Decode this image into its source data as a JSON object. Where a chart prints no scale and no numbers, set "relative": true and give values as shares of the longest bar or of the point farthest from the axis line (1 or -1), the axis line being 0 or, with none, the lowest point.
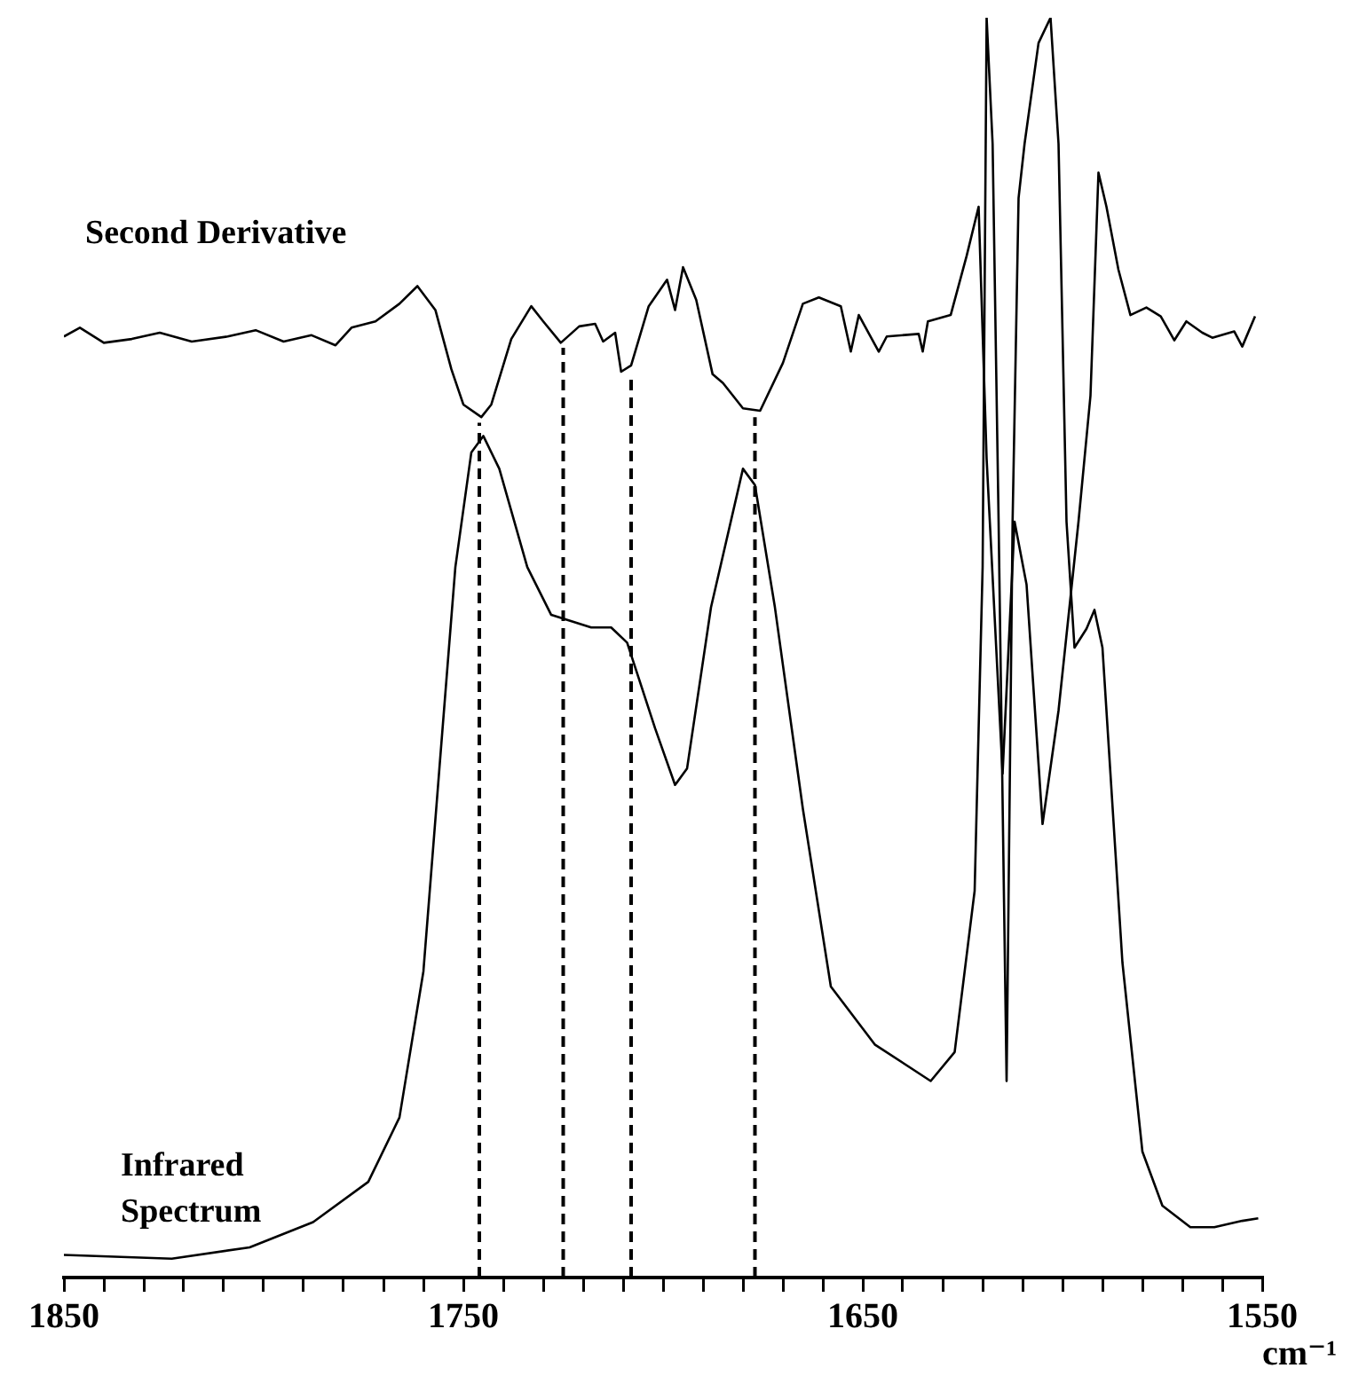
{
  "chart_data": {
    "type": "line",
    "relative": true,
    "xlabel": "cm⁻¹",
    "xlim": [
      1850,
      1550
    ],
    "xticks": [
      1850,
      {
        "value": 1840,
        "label": null
      },
      {
        "value": 1830,
        "label": null
      },
      {
        "value": 1820,
        "label": null
      },
      {
        "value": 1810,
        "label": null
      },
      {
        "value": 1800,
        "label": null
      },
      {
        "value": 1790,
        "label": null
      },
      {
        "value": 1780,
        "label": null
      },
      {
        "value": 1770,
        "label": null
      },
      {
        "value": 1760,
        "label": null
      },
      1750,
      {
        "value": 1740,
        "label": null
      },
      {
        "value": 1730,
        "label": null
      },
      {
        "value": 1720,
        "label": null
      },
      {
        "value": 1710,
        "label": null
      },
      {
        "value": 1700,
        "label": null
      },
      {
        "value": 1690,
        "label": null
      },
      {
        "value": 1680,
        "label": null
      },
      {
        "value": 1670,
        "label": null
      },
      {
        "value": 1660,
        "label": null
      },
      1650,
      {
        "value": 1640,
        "label": null
      },
      {
        "value": 1630,
        "label": null
      },
      {
        "value": 1620,
        "label": null
      },
      {
        "value": 1610,
        "label": null
      },
      {
        "value": 1600,
        "label": null
      },
      {
        "value": 1590,
        "label": null
      },
      {
        "value": 1580,
        "label": null
      },
      {
        "value": 1570,
        "label": null
      },
      {
        "value": 1560,
        "label": null
      },
      1550
    ],
    "grid": false,
    "legend": false,
    "marker": "none",
    "line_style": "solid",
    "series": [
      {
        "name": "Second Derivative",
        "color": "#000000",
        "x": [
          1850,
          1846,
          1840,
          1833,
          1826,
          1818,
          1809,
          1802,
          1795,
          1788,
          1782,
          1778,
          1772,
          1766,
          1761.5,
          1757,
          1753,
          1750,
          1745.5,
          1743,
          1738,
          1733,
          1730,
          1725.6,
          1721,
          1717,
          1715,
          1712,
          1710.5,
          1708,
          1703.6,
          1699,
          1697,
          1695,
          1691.7,
          1687.6,
          1685,
          1680,
          1675.7,
          1670,
          1665,
          1661,
          1655.5,
          1653,
          1651,
          1646,
          1644,
          1636,
          1635,
          1633.7,
          1628,
          1624,
          1621,
          1619,
          1615,
          1612,
          1609,
          1605,
          1601,
          1596,
          1593,
          1591,
          1589,
          1586,
          1583,
          1579,
          1575.4,
          1572,
          1569,
          1565,
          1562.5,
          1557,
          1555,
          1551.8
        ],
        "values": [
          0.747,
          0.754,
          0.742,
          0.745,
          0.75,
          0.743,
          0.747,
          0.752,
          0.743,
          0.748,
          0.74,
          0.754,
          0.759,
          0.773,
          0.787,
          0.768,
          0.721,
          0.693,
          0.683,
          0.693,
          0.745,
          0.771,
          0.759,
          0.742,
          0.755,
          0.757,
          0.743,
          0.75,
          0.719,
          0.724,
          0.771,
          0.792,
          0.768,
          0.802,
          0.776,
          0.717,
          0.71,
          0.69,
          0.688,
          0.726,
          0.773,
          0.778,
          0.771,
          0.735,
          0.764,
          0.735,
          0.747,
          0.749,
          0.735,
          0.759,
          0.764,
          0.811,
          0.85,
          0.65,
          0.4,
          0.6,
          0.55,
          0.36,
          0.45,
          0.6,
          0.7,
          0.877,
          0.85,
          0.8,
          0.764,
          0.77,
          0.763,
          0.744,
          0.759,
          0.75,
          0.746,
          0.751,
          0.739,
          0.763
        ]
      },
      {
        "name": "Infrared Spectrum",
        "color": "#000000",
        "x": [
          1850,
          1823,
          1803.5,
          1787.6,
          1773.8,
          1766,
          1760,
          1756,
          1752,
          1748,
          1745,
          1741,
          1734,
          1728,
          1718,
          1713,
          1709,
          1702,
          1697,
          1694,
          1688,
          1680,
          1677,
          1672,
          1665,
          1658,
          1647,
          1633,
          1627,
          1622,
          1620,
          1619,
          1617.5,
          1616,
          1614,
          1612.5,
          1611,
          1609.5,
          1606,
          1603,
          1601,
          1599,
          1597,
          1594,
          1592,
          1590,
          1588,
          1585,
          1580,
          1575,
          1568,
          1562,
          1555,
          1551
        ],
        "values": [
          0.018,
          0.015,
          0.024,
          0.044,
          0.076,
          0.127,
          0.243,
          0.404,
          0.564,
          0.655,
          0.668,
          0.642,
          0.564,
          0.526,
          0.516,
          0.516,
          0.504,
          0.436,
          0.391,
          0.404,
          0.532,
          0.642,
          0.629,
          0.532,
          0.372,
          0.231,
          0.185,
          0.156,
          0.179,
          0.307,
          0.564,
          1,
          0.9,
          0.6,
          0.156,
          0.6,
          0.857,
          0.9,
          0.98,
          1,
          0.9,
          0.6,
          0.5,
          0.515,
          0.53,
          0.5,
          0.4,
          0.25,
          0.1,
          0.057,
          0.04,
          0.04,
          0.045,
          0.047
        ]
      }
    ],
    "ref_lines": [
      {
        "axis": "x",
        "value": 1746,
        "color": "#000000",
        "line_style": "dashed"
      },
      {
        "axis": "x",
        "value": 1725,
        "color": "#000000",
        "line_style": "dashed"
      },
      {
        "axis": "x",
        "value": 1708,
        "color": "#000000",
        "line_style": "dashed"
      },
      {
        "axis": "x",
        "value": 1677,
        "color": "#000000",
        "line_style": "dashed"
      }
    ]
  }
}
